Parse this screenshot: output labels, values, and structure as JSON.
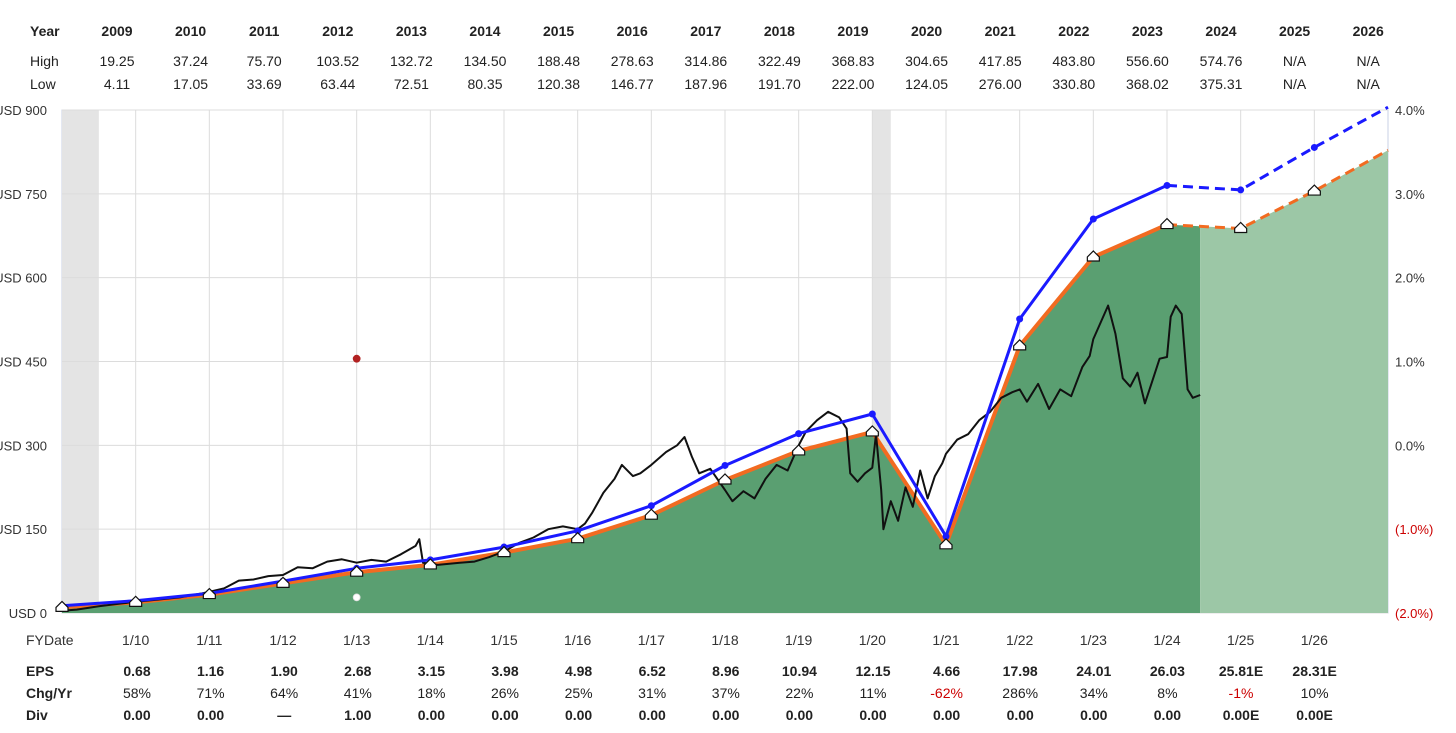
{
  "colors": {
    "area": "#5a9f71",
    "area_forecast": "#9cc7a6",
    "eps_line": "#f26b21",
    "high_pe_line": "#1a1aff",
    "price_line": "#111111",
    "grid": "#dcdcdc",
    "negative_text": "#cc0000",
    "recession_band": "#e4e4e4"
  },
  "chart_data": {
    "type": "line",
    "title": "",
    "years": [
      "2009",
      "2010",
      "2011",
      "2012",
      "2013",
      "2014",
      "2015",
      "2016",
      "2017",
      "2018",
      "2019",
      "2020",
      "2021",
      "2022",
      "2023",
      "2024",
      "2025",
      "2026"
    ],
    "high": [
      "19.25",
      "37.24",
      "75.70",
      "103.52",
      "132.72",
      "134.50",
      "188.48",
      "278.63",
      "314.86",
      "322.49",
      "368.83",
      "304.65",
      "417.85",
      "483.80",
      "556.60",
      "574.76",
      "N/A",
      "N/A"
    ],
    "low": [
      "4.11",
      "17.05",
      "33.69",
      "63.44",
      "72.51",
      "80.35",
      "120.38",
      "146.77",
      "187.96",
      "191.70",
      "222.00",
      "124.05",
      "276.00",
      "330.80",
      "368.02",
      "375.31",
      "N/A",
      "N/A"
    ],
    "x_ticks": [
      "1/10",
      "1/11",
      "1/12",
      "1/13",
      "1/14",
      "1/15",
      "1/16",
      "1/17",
      "1/18",
      "1/19",
      "1/20",
      "1/21",
      "1/22",
      "1/23",
      "1/24",
      "1/25",
      "1/26"
    ],
    "y_left_ticks": [
      {
        "value": 900,
        "label": "USD 900"
      },
      {
        "value": 750,
        "label": "USD 750"
      },
      {
        "value": 600,
        "label": "USD 600"
      },
      {
        "value": 450,
        "label": "USD 450"
      },
      {
        "value": 300,
        "label": "USD 300"
      },
      {
        "value": 150,
        "label": "USD 150"
      },
      {
        "value": 0,
        "label": "USD 0"
      }
    ],
    "y_right_ticks": [
      {
        "value": 4.0,
        "label": "4.0%",
        "negative": false
      },
      {
        "value": 3.0,
        "label": "3.0%",
        "negative": false
      },
      {
        "value": 2.0,
        "label": "2.0%",
        "negative": false
      },
      {
        "value": 1.0,
        "label": "1.0%",
        "negative": false
      },
      {
        "value": 0.0,
        "label": "0.0%",
        "negative": false
      },
      {
        "value": -1.0,
        "label": "(1.0%)",
        "negative": true
      },
      {
        "value": -2.0,
        "label": "(2.0%)",
        "negative": true
      }
    ],
    "ylim": [
      0,
      900
    ],
    "time_range": [
      2009.0,
      2027.0
    ],
    "recession_bands": [
      [
        2009.0,
        2009.5
      ],
      [
        2020.0,
        2020.25
      ]
    ],
    "eps_points": [
      {
        "t": 2009.0,
        "v": 10
      },
      {
        "t": 2010.0,
        "v": 19
      },
      {
        "t": 2011.0,
        "v": 33
      },
      {
        "t": 2012.0,
        "v": 53
      },
      {
        "t": 2013.0,
        "v": 73
      },
      {
        "t": 2014.0,
        "v": 86
      },
      {
        "t": 2015.0,
        "v": 108
      },
      {
        "t": 2016.0,
        "v": 133
      },
      {
        "t": 2017.0,
        "v": 175
      },
      {
        "t": 2018.0,
        "v": 238
      },
      {
        "t": 2019.0,
        "v": 290
      },
      {
        "t": 2020.0,
        "v": 324
      },
      {
        "t": 2021.0,
        "v": 122
      },
      {
        "t": 2022.0,
        "v": 478
      },
      {
        "t": 2023.0,
        "v": 637
      },
      {
        "t": 2024.0,
        "v": 695
      },
      {
        "t": 2025.0,
        "v": 688,
        "estimate": true
      },
      {
        "t": 2026.0,
        "v": 755,
        "estimate": true
      },
      {
        "t": 2027.0,
        "v": 828,
        "estimate": true
      }
    ],
    "actual_end": 2024.45,
    "high_pe_points": [
      {
        "t": 2009.0,
        "v": 13
      },
      {
        "t": 2010.0,
        "v": 22
      },
      {
        "t": 2011.0,
        "v": 35
      },
      {
        "t": 2012.0,
        "v": 57
      },
      {
        "t": 2013.0,
        "v": 80
      },
      {
        "t": 2014.0,
        "v": 95
      },
      {
        "t": 2015.0,
        "v": 118
      },
      {
        "t": 2016.0,
        "v": 147
      },
      {
        "t": 2017.0,
        "v": 192
      },
      {
        "t": 2018.0,
        "v": 264
      },
      {
        "t": 2019.0,
        "v": 321
      },
      {
        "t": 2020.0,
        "v": 356
      },
      {
        "t": 2021.0,
        "v": 137
      },
      {
        "t": 2022.0,
        "v": 526
      },
      {
        "t": 2023.0,
        "v": 705
      },
      {
        "t": 2024.0,
        "v": 765
      },
      {
        "t": 2025.0,
        "v": 757,
        "estimate": true
      },
      {
        "t": 2026.0,
        "v": 833,
        "estimate": true
      },
      {
        "t": 2027.0,
        "v": 905,
        "estimate": true
      }
    ],
    "price_series": [
      [
        2009.0,
        4
      ],
      [
        2009.2,
        6
      ],
      [
        2009.5,
        12
      ],
      [
        2009.8,
        17
      ],
      [
        2010.0,
        20
      ],
      [
        2010.3,
        24
      ],
      [
        2010.6,
        28
      ],
      [
        2010.9,
        35
      ],
      [
        2011.0,
        38
      ],
      [
        2011.2,
        44
      ],
      [
        2011.4,
        58
      ],
      [
        2011.6,
        60
      ],
      [
        2011.8,
        66
      ],
      [
        2012.0,
        68
      ],
      [
        2012.2,
        82
      ],
      [
        2012.4,
        80
      ],
      [
        2012.6,
        92
      ],
      [
        2012.8,
        96
      ],
      [
        2013.0,
        90
      ],
      [
        2013.2,
        95
      ],
      [
        2013.4,
        92
      ],
      [
        2013.6,
        105
      ],
      [
        2013.8,
        120
      ],
      [
        2013.85,
        132
      ],
      [
        2013.9,
        90
      ],
      [
        2014.1,
        86
      ],
      [
        2014.4,
        90
      ],
      [
        2014.6,
        92
      ],
      [
        2014.8,
        100
      ],
      [
        2015.0,
        110
      ],
      [
        2015.2,
        125
      ],
      [
        2015.4,
        135
      ],
      [
        2015.6,
        150
      ],
      [
        2015.8,
        155
      ],
      [
        2016.0,
        150
      ],
      [
        2016.1,
        160
      ],
      [
        2016.2,
        180
      ],
      [
        2016.35,
        215
      ],
      [
        2016.5,
        240
      ],
      [
        2016.6,
        265
      ],
      [
        2016.75,
        245
      ],
      [
        2016.85,
        250
      ],
      [
        2017.0,
        265
      ],
      [
        2017.2,
        288
      ],
      [
        2017.35,
        300
      ],
      [
        2017.45,
        315
      ],
      [
        2017.55,
        280
      ],
      [
        2017.65,
        250
      ],
      [
        2017.8,
        258
      ],
      [
        2018.0,
        220
      ],
      [
        2018.1,
        200
      ],
      [
        2018.25,
        218
      ],
      [
        2018.4,
        205
      ],
      [
        2018.55,
        240
      ],
      [
        2018.7,
        265
      ],
      [
        2018.85,
        255
      ],
      [
        2019.0,
        300
      ],
      [
        2019.1,
        325
      ],
      [
        2019.25,
        345
      ],
      [
        2019.4,
        360
      ],
      [
        2019.55,
        350
      ],
      [
        2019.65,
        330
      ],
      [
        2019.7,
        250
      ],
      [
        2019.8,
        235
      ],
      [
        2019.9,
        250
      ],
      [
        2020.0,
        260
      ],
      [
        2020.05,
        320
      ],
      [
        2020.12,
        220
      ],
      [
        2020.15,
        150
      ],
      [
        2020.25,
        200
      ],
      [
        2020.35,
        165
      ],
      [
        2020.45,
        225
      ],
      [
        2020.55,
        190
      ],
      [
        2020.65,
        255
      ],
      [
        2020.75,
        205
      ],
      [
        2020.85,
        245
      ],
      [
        2020.95,
        268
      ],
      [
        2021.0,
        285
      ],
      [
        2021.15,
        310
      ],
      [
        2021.3,
        320
      ],
      [
        2021.45,
        345
      ],
      [
        2021.6,
        360
      ],
      [
        2021.75,
        385
      ],
      [
        2021.9,
        395
      ],
      [
        2022.0,
        400
      ],
      [
        2022.1,
        378
      ],
      [
        2022.25,
        410
      ],
      [
        2022.4,
        365
      ],
      [
        2022.55,
        400
      ],
      [
        2022.7,
        388
      ],
      [
        2022.85,
        440
      ],
      [
        2022.95,
        460
      ],
      [
        2023.0,
        490
      ],
      [
        2023.1,
        520
      ],
      [
        2023.2,
        550
      ],
      [
        2023.3,
        500
      ],
      [
        2023.4,
        420
      ],
      [
        2023.5,
        405
      ],
      [
        2023.6,
        430
      ],
      [
        2023.7,
        375
      ],
      [
        2023.8,
        415
      ],
      [
        2023.9,
        455
      ],
      [
        2024.0,
        458
      ],
      [
        2024.05,
        530
      ],
      [
        2024.12,
        550
      ],
      [
        2024.2,
        535
      ],
      [
        2024.28,
        400
      ],
      [
        2024.35,
        385
      ],
      [
        2024.45,
        390
      ]
    ],
    "extra_markers": [
      {
        "t": 2013.0,
        "v": 455,
        "color": "#b22222"
      },
      {
        "t": 2013.0,
        "v": 28,
        "color": "#ffffff"
      }
    ],
    "bottom_table": {
      "fy_label": "FY",
      "date_label": "Date",
      "eps_label": "EPS",
      "chg_label": "Chg/Yr",
      "div_label": "Div",
      "eps": [
        "0.68",
        "1.16",
        "1.90",
        "2.68",
        "3.15",
        "3.98",
        "4.98",
        "6.52",
        "8.96",
        "10.94",
        "12.15",
        "4.66",
        "17.98",
        "24.01",
        "26.03",
        "25.81E",
        "28.31E"
      ],
      "chg": [
        {
          "text": "58%",
          "negative": false
        },
        {
          "text": "71%",
          "negative": false
        },
        {
          "text": "64%",
          "negative": false
        },
        {
          "text": "41%",
          "negative": false
        },
        {
          "text": "18%",
          "negative": false
        },
        {
          "text": "26%",
          "negative": false
        },
        {
          "text": "25%",
          "negative": false
        },
        {
          "text": "31%",
          "negative": false
        },
        {
          "text": "37%",
          "negative": false
        },
        {
          "text": "22%",
          "negative": false
        },
        {
          "text": "11%",
          "negative": false
        },
        {
          "text": "-62%",
          "negative": true
        },
        {
          "text": "286%",
          "negative": false
        },
        {
          "text": "34%",
          "negative": false
        },
        {
          "text": "8%",
          "negative": false
        },
        {
          "text": "-1%",
          "negative": true
        },
        {
          "text": "10%",
          "negative": false
        }
      ],
      "div": [
        "0.00",
        "0.00",
        "—",
        "1.00",
        "0.00",
        "0.00",
        "0.00",
        "0.00",
        "0.00",
        "0.00",
        "0.00",
        "0.00",
        "0.00",
        "0.00",
        "0.00",
        "0.00E",
        "0.00E"
      ]
    },
    "top_table": {
      "year_label": "Year",
      "high_label": "High",
      "low_label": "Low"
    }
  }
}
